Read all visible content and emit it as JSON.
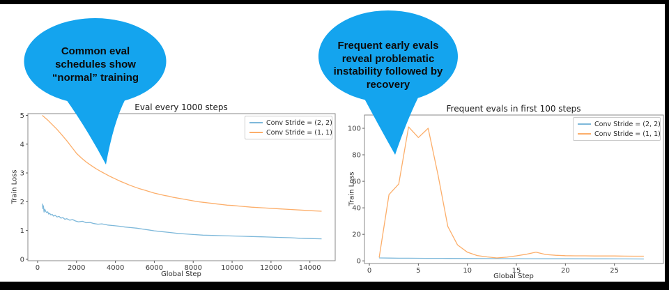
{
  "bubbles": [
    {
      "color": "#14a4ee",
      "text_lines": [
        "Common eval",
        "schedules show",
        "“normal” training"
      ]
    },
    {
      "color": "#14a4ee",
      "text_lines": [
        "Frequent early evals",
        "reveal problematic",
        "instability followed by",
        "recovery"
      ]
    }
  ],
  "chart_data": [
    {
      "type": "line",
      "title": "Eval every 1000 steps",
      "xlabel": "Global Step",
      "ylabel": "Train Loss",
      "xlim": [
        -500,
        15300
      ],
      "ylim": [
        -0.05,
        5.06
      ],
      "x_ticks": [
        0,
        2000,
        4000,
        6000,
        8000,
        10000,
        12000,
        14000
      ],
      "y_ticks": [
        0,
        1,
        2,
        3,
        4,
        5
      ],
      "grid": false,
      "legend_position": "upper right",
      "series": [
        {
          "name": "Conv Stride =  (2, 2)",
          "color": "#7db8da",
          "points": [
            [
              240,
              1.93
            ],
            [
              270,
              1.76
            ],
            [
              300,
              1.86
            ],
            [
              330,
              1.64
            ],
            [
              370,
              1.74
            ],
            [
              420,
              1.66
            ],
            [
              470,
              1.62
            ],
            [
              520,
              1.65
            ],
            [
              570,
              1.57
            ],
            [
              620,
              1.6
            ],
            [
              680,
              1.54
            ],
            [
              750,
              1.56
            ],
            [
              820,
              1.5
            ],
            [
              900,
              1.53
            ],
            [
              1000,
              1.47
            ],
            [
              1100,
              1.49
            ],
            [
              1200,
              1.43
            ],
            [
              1300,
              1.45
            ],
            [
              1400,
              1.39
            ],
            [
              1500,
              1.41
            ],
            [
              1650,
              1.36
            ],
            [
              1800,
              1.38
            ],
            [
              1950,
              1.33
            ],
            [
              2100,
              1.3
            ],
            [
              2300,
              1.32
            ],
            [
              2500,
              1.27
            ],
            [
              2700,
              1.28
            ],
            [
              2900,
              1.24
            ],
            [
              3100,
              1.22
            ],
            [
              3300,
              1.23
            ],
            [
              3600,
              1.19
            ],
            [
              3900,
              1.17
            ],
            [
              4200,
              1.15
            ],
            [
              4500,
              1.12
            ],
            [
              4800,
              1.1
            ],
            [
              5100,
              1.08
            ],
            [
              5400,
              1.05
            ],
            [
              5700,
              1.02
            ],
            [
              6000,
              0.99
            ],
            [
              6400,
              0.96
            ],
            [
              6800,
              0.93
            ],
            [
              7200,
              0.9
            ],
            [
              7600,
              0.88
            ],
            [
              8000,
              0.86
            ],
            [
              8500,
              0.84
            ],
            [
              9000,
              0.83
            ],
            [
              9500,
              0.82
            ],
            [
              10000,
              0.81
            ],
            [
              10500,
              0.8
            ],
            [
              11000,
              0.79
            ],
            [
              11500,
              0.78
            ],
            [
              12000,
              0.77
            ],
            [
              12500,
              0.76
            ],
            [
              13000,
              0.75
            ],
            [
              13500,
              0.73
            ],
            [
              14000,
              0.72
            ],
            [
              14600,
              0.71
            ]
          ]
        },
        {
          "name": "Conv Stride =  (1, 1)",
          "color": "#fcae6a",
          "points": [
            [
              240,
              5.0
            ],
            [
              500,
              4.85
            ],
            [
              750,
              4.68
            ],
            [
              1000,
              4.51
            ],
            [
              1250,
              4.32
            ],
            [
              1500,
              4.12
            ],
            [
              1750,
              3.9
            ],
            [
              2000,
              3.68
            ],
            [
              2250,
              3.52
            ],
            [
              2500,
              3.38
            ],
            [
              2750,
              3.26
            ],
            [
              3000,
              3.15
            ],
            [
              3250,
              3.05
            ],
            [
              3500,
              2.96
            ],
            [
              3750,
              2.87
            ],
            [
              4000,
              2.79
            ],
            [
              4250,
              2.71
            ],
            [
              4500,
              2.64
            ],
            [
              4750,
              2.57
            ],
            [
              5000,
              2.51
            ],
            [
              5250,
              2.45
            ],
            [
              5500,
              2.4
            ],
            [
              5750,
              2.35
            ],
            [
              6000,
              2.3
            ],
            [
              6250,
              2.26
            ],
            [
              6500,
              2.22
            ],
            [
              6750,
              2.19
            ],
            [
              7000,
              2.15
            ],
            [
              7250,
              2.12
            ],
            [
              7500,
              2.09
            ],
            [
              7750,
              2.06
            ],
            [
              8000,
              2.03
            ],
            [
              8250,
              2.0
            ],
            [
              8500,
              1.98
            ],
            [
              8750,
              1.96
            ],
            [
              9000,
              1.94
            ],
            [
              9250,
              1.92
            ],
            [
              9500,
              1.9
            ],
            [
              9750,
              1.88
            ],
            [
              10000,
              1.87
            ],
            [
              10500,
              1.84
            ],
            [
              11000,
              1.81
            ],
            [
              11500,
              1.79
            ],
            [
              12000,
              1.77
            ],
            [
              12500,
              1.75
            ],
            [
              13000,
              1.73
            ],
            [
              13500,
              1.71
            ],
            [
              14000,
              1.69
            ],
            [
              14600,
              1.67
            ]
          ]
        }
      ]
    },
    {
      "type": "line",
      "title": "Frequent evals in first 100 steps",
      "xlabel": "Global Step",
      "ylabel": "Train Loss",
      "xlim": [
        -0.5,
        30
      ],
      "ylim": [
        -2,
        110
      ],
      "x_ticks": [
        0,
        5,
        10,
        15,
        20,
        25
      ],
      "y_ticks": [
        0,
        20,
        40,
        60,
        80,
        100
      ],
      "grid": false,
      "legend_position": "upper right",
      "series": [
        {
          "name": "Conv Stride =  (2, 2)",
          "color": "#7db8da",
          "points": [
            [
              1,
              2.2
            ],
            [
              2,
              2.1
            ],
            [
              3,
              2.0
            ],
            [
              4,
              2.0
            ],
            [
              5,
              1.95
            ],
            [
              6,
              1.9
            ],
            [
              7,
              1.9
            ],
            [
              8,
              1.85
            ],
            [
              10,
              1.8
            ],
            [
              12,
              1.75
            ],
            [
              14,
              1.7
            ],
            [
              16,
              1.65
            ],
            [
              18,
              1.6
            ],
            [
              20,
              1.55
            ],
            [
              22,
              1.5
            ],
            [
              24,
              1.5
            ],
            [
              26,
              1.45
            ],
            [
              28,
              1.4
            ]
          ]
        },
        {
          "name": "Conv Stride =  (1, 1)",
          "color": "#fcae6a",
          "points": [
            [
              1,
              2.5
            ],
            [
              2,
              50
            ],
            [
              3,
              58
            ],
            [
              4,
              101
            ],
            [
              5,
              93
            ],
            [
              6,
              100
            ],
            [
              7,
              65
            ],
            [
              8,
              26
            ],
            [
              9,
              12
            ],
            [
              10,
              6.5
            ],
            [
              11,
              4
            ],
            [
              12,
              3
            ],
            [
              13,
              2.2
            ],
            [
              14,
              2.8
            ],
            [
              15,
              3.8
            ],
            [
              16,
              5
            ],
            [
              17,
              6.5
            ],
            [
              18,
              4.8
            ],
            [
              19,
              4.2
            ],
            [
              20,
              3.9
            ],
            [
              21,
              3.8
            ],
            [
              22,
              3.8
            ],
            [
              23,
              3.7
            ],
            [
              24,
              3.7
            ],
            [
              25,
              3.7
            ],
            [
              26,
              3.6
            ],
            [
              27,
              3.5
            ],
            [
              28,
              3.5
            ]
          ]
        }
      ]
    }
  ]
}
